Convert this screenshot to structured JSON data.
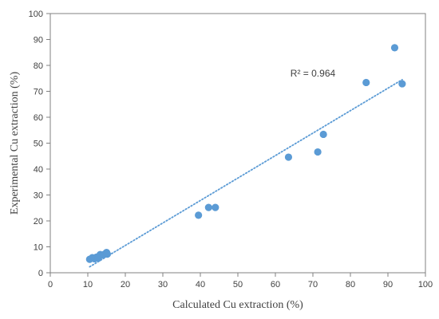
{
  "chart_data": {
    "type": "scatter",
    "title": "",
    "xlabel": "Calculated Cu extraction (%)",
    "ylabel": "Experimental Cu extraction (%)",
    "xlim": [
      0,
      100
    ],
    "ylim": [
      0,
      100
    ],
    "xticks": [
      0,
      10,
      20,
      30,
      40,
      50,
      60,
      70,
      80,
      90,
      100
    ],
    "yticks": [
      0,
      10,
      20,
      30,
      40,
      50,
      60,
      70,
      80,
      90,
      100
    ],
    "grid": false,
    "legend": "none",
    "series": [
      {
        "color": "#5b9bd5",
        "points": [
          {
            "x": 10.5,
            "y": 5.2
          },
          {
            "x": 11.2,
            "y": 5.8
          },
          {
            "x": 11.8,
            "y": 5.4
          },
          {
            "x": 12.3,
            "y": 6.0
          },
          {
            "x": 12.8,
            "y": 5.6
          },
          {
            "x": 13.3,
            "y": 7.0
          },
          {
            "x": 14.0,
            "y": 6.8
          },
          {
            "x": 14.5,
            "y": 7.2
          },
          {
            "x": 15.0,
            "y": 7.8
          },
          {
            "x": 15.2,
            "y": 7.2
          },
          {
            "x": 39.5,
            "y": 22.2
          },
          {
            "x": 42.2,
            "y": 25.2
          },
          {
            "x": 44.0,
            "y": 25.2
          },
          {
            "x": 63.5,
            "y": 44.6
          },
          {
            "x": 71.3,
            "y": 46.6
          },
          {
            "x": 72.8,
            "y": 53.4
          },
          {
            "x": 84.2,
            "y": 73.4
          },
          {
            "x": 91.8,
            "y": 86.8
          },
          {
            "x": 93.8,
            "y": 72.9
          }
        ]
      }
    ],
    "trendline": {
      "style": "dotted",
      "color": "#5b9bd5",
      "x": [
        10.5,
        93.8
      ],
      "y": [
        2.3,
        74.5
      ]
    },
    "annotation": "R² = 0.964"
  }
}
